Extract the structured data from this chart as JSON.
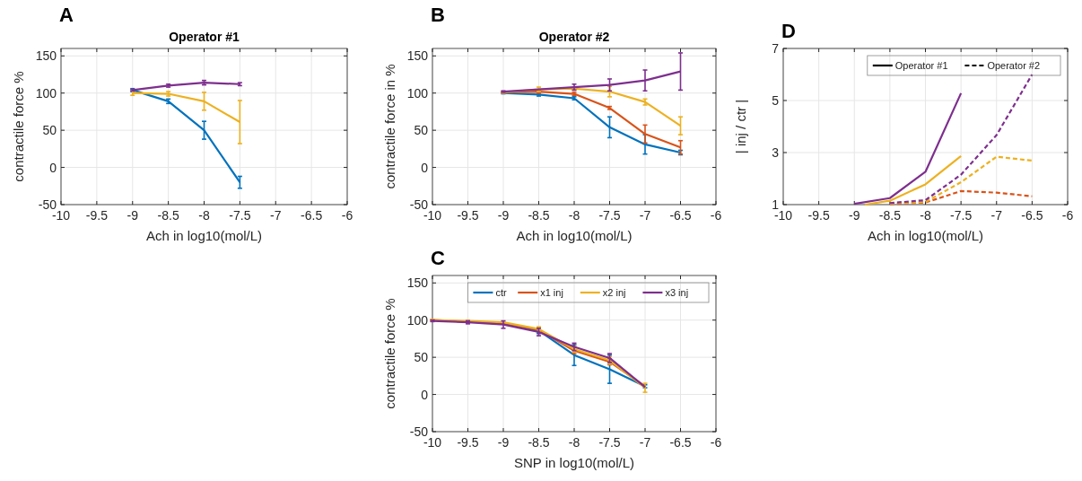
{
  "chart_data": [
    {
      "type": "line",
      "title": "Operator #1",
      "xlabel": "Ach in log10(mol/L)",
      "ylabel": "contractile force %",
      "annotations": [
        "A"
      ],
      "x": [
        -9,
        -8.5,
        -8,
        -7.5
      ],
      "xlim": [
        -10,
        -6
      ],
      "xticks": [
        -10,
        -9.5,
        -9,
        -8.5,
        -8,
        -7.5,
        -7,
        -6.5,
        -6
      ],
      "ylim": [
        -50,
        160
      ],
      "yticks": [
        -50,
        0,
        50,
        100,
        150
      ],
      "grid": true,
      "legend": false,
      "series": [
        {
          "color": "#0072bd",
          "values": [
            104,
            89,
            50,
            -20
          ],
          "errors": [
            2,
            3,
            12,
            8
          ]
        },
        {
          "color": "#edb120",
          "values": [
            100,
            99,
            89,
            61
          ],
          "errors": [
            3,
            3,
            12,
            29
          ]
        },
        {
          "color": "#7e2f8e",
          "values": [
            104,
            110,
            114,
            112
          ],
          "errors": [
            1,
            2,
            3,
            2
          ]
        }
      ]
    },
    {
      "type": "line",
      "title": "Operator #2",
      "xlabel": "Ach in log10(mol/L)",
      "ylabel": "contractile force in %",
      "annotations": [
        "B"
      ],
      "x": [
        -9,
        -8.5,
        -8,
        -7.5,
        -7,
        -6.5
      ],
      "xlim": [
        -10,
        -6
      ],
      "xticks": [
        -10,
        -9.5,
        -9,
        -8.5,
        -8,
        -7.5,
        -7,
        -6.5,
        -6
      ],
      "ylim": [
        -50,
        160
      ],
      "yticks": [
        -50,
        0,
        50,
        100,
        150
      ],
      "grid": true,
      "legend": false,
      "series": [
        {
          "color": "#0072bd",
          "values": [
            100,
            98,
            93,
            54,
            31,
            20
          ],
          "errors": [
            1,
            2,
            2,
            14,
            13,
            3
          ]
        },
        {
          "color": "#d95319",
          "values": [
            101,
            102,
            99,
            80,
            45,
            27
          ],
          "errors": [
            1,
            2,
            2,
            2,
            12,
            9
          ]
        },
        {
          "color": "#edb120",
          "values": [
            101,
            105,
            106,
            102,
            88,
            56
          ],
          "errors": [
            1,
            3,
            2,
            7,
            4,
            12
          ]
        },
        {
          "color": "#7e2f8e",
          "values": [
            102,
            105,
            108,
            111,
            117,
            129
          ],
          "errors": [
            1,
            null,
            4,
            8,
            14,
            25
          ]
        }
      ]
    },
    {
      "type": "line",
      "xlabel": "SNP in log10(mol/L)",
      "ylabel": "contractile force %",
      "annotations": [
        "C"
      ],
      "x": [
        -10,
        -9.5,
        -9,
        -8.5,
        -8,
        -7.5,
        -7
      ],
      "xlim": [
        -10,
        -6
      ],
      "xticks": [
        -10,
        -9.5,
        -9,
        -8.5,
        -8,
        -7.5,
        -7,
        -6.5,
        -6
      ],
      "ylim": [
        -50,
        160
      ],
      "yticks": [
        -50,
        0,
        50,
        100,
        150
      ],
      "grid": true,
      "legend": "top right",
      "series": [
        {
          "name": "ctr",
          "color": "#0072bd",
          "values": [
            null,
            null,
            96,
            86,
            53,
            34,
            11
          ],
          "errors": [
            null,
            null,
            null,
            4,
            14,
            19,
            2
          ]
        },
        {
          "name": "x1 inj",
          "color": "#d95319",
          "values": [
            100,
            98,
            96,
            87,
            59,
            44,
            11
          ],
          "errors": [
            1,
            1,
            null,
            3,
            4,
            4,
            null
          ]
        },
        {
          "name": "x2 inj",
          "color": "#edb120",
          "values": [
            100,
            99,
            97,
            88,
            61,
            46,
            9
          ],
          "errors": [
            1,
            1,
            null,
            3,
            4,
            5,
            6
          ]
        },
        {
          "name": "x3 inj",
          "color": "#7e2f8e",
          "values": [
            99,
            97,
            94,
            84,
            64,
            49,
            10
          ],
          "errors": [
            1,
            2,
            5,
            5,
            5,
            6,
            null
          ]
        }
      ]
    },
    {
      "type": "line",
      "xlabel": "Ach in log10(mol/L)",
      "ylabel": "| inj / ctr |",
      "annotations": [
        "D"
      ],
      "xlim": [
        -10,
        -6
      ],
      "xticks": [
        -10,
        -9.5,
        -9,
        -8.5,
        -8,
        -7.5,
        -7,
        -6.5,
        -6
      ],
      "ylim": [
        1,
        7
      ],
      "yticks": [
        1,
        3,
        5,
        7
      ],
      "grid": true,
      "legend": "top right",
      "series": [
        {
          "name": "Operator #1",
          "color": "#7e2f8e",
          "line_style": "solid",
          "x": [
            -9,
            -8.5,
            -8,
            -7.5
          ],
          "values": [
            1.03,
            1.25,
            2.26,
            5.28
          ]
        },
        {
          "color": "#edb120",
          "line_style": "solid",
          "x": [
            -8.85,
            -8.5,
            -8,
            -7.5
          ],
          "values": [
            1,
            1.15,
            1.78,
            2.87
          ]
        },
        {
          "color": "#d95319",
          "line_style": "dashed",
          "x": [
            -8.5,
            -8,
            -7.5,
            -7,
            -6.5
          ],
          "values": [
            1.02,
            1.08,
            1.52,
            1.46,
            1.32
          ]
        },
        {
          "color": "#edb120",
          "line_style": "dashed",
          "x": [
            -8.5,
            -8,
            -7.5,
            -7,
            -6.5
          ],
          "values": [
            1.04,
            1.1,
            1.86,
            2.84,
            2.69
          ]
        },
        {
          "name": "Operator #2",
          "color": "#7e2f8e",
          "line_style": "dashed",
          "x": [
            -8.5,
            -8,
            -7.5,
            -7,
            -6.5
          ],
          "values": [
            1.06,
            1.17,
            2.15,
            3.67,
            6
          ]
        }
      ]
    }
  ]
}
